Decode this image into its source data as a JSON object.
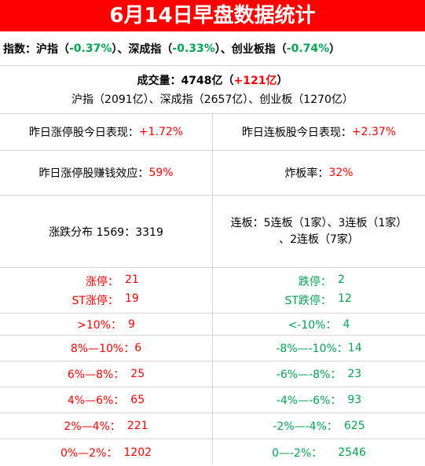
{
  "title": "6月14日早盘数据统计",
  "index": {
    "prefix": "指数：",
    "sh_label": "沪指（",
    "sh_val": "-0.37%",
    "sh_close": "）、",
    "sz_label": "深成指（",
    "sz_val": "-0.33%",
    "sz_close": "）、",
    "cy_label": "创业板指（",
    "cy_val": "-0.74%",
    "cy_close": "）"
  },
  "volume": {
    "label": "成交量：4748亿（",
    "change": "+121亿",
    "close": "）",
    "detail": "沪指（2091亿）、深成指（2657亿）、创业板（1270亿）"
  },
  "row3": {
    "left_label": "昨日涨停股今日表现：",
    "left_val": "+1.72%",
    "right_label": "昨日连板股今日表现：",
    "right_val": "+2.37%"
  },
  "row4": {
    "left_label": "昨日涨停股赚钱效应：",
    "left_val": "59%",
    "right_label": "炸板率：",
    "right_val": "32%"
  },
  "row5": {
    "left": "涨跌分布 1569：3319",
    "right_line1": "连板：5连板（1家）、3连板（1家）",
    "right_line2": "、2连板（7家）"
  },
  "limits": {
    "up_label": "涨停：",
    "up_val": "21",
    "st_up_label": "ST涨停：",
    "st_up_val": "19",
    "down_label": "跌停：",
    "down_val": "2",
    "st_down_label": "ST跌停：",
    "st_down_val": "12"
  },
  "dist": [
    {
      "left_label": ">10%：",
      "left_val": "9",
      "right_label": "<-10%：",
      "right_val": "4"
    },
    {
      "left_label": "8%—10%：",
      "left_val": "6",
      "right_label": "-8%—-10%：",
      "right_val": "14"
    },
    {
      "left_label": "6%—8%：",
      "left_val": "25",
      "right_label": "-6%—-8%：",
      "right_val": "23"
    },
    {
      "left_label": "4%—6%：",
      "left_val": "65",
      "right_label": "-4%—-6%：",
      "right_val": "93"
    },
    {
      "left_label": "2%—4%：",
      "left_val": "221",
      "right_label": "-2%—-4%：",
      "right_val": "625"
    },
    {
      "left_label": "0%—2%：",
      "left_val": "1202",
      "right_label": "0—-2%：",
      "right_val": "2546"
    }
  ],
  "colors": {
    "accent": "#ff0000",
    "up": "#ff0000",
    "down": "#00a651"
  }
}
